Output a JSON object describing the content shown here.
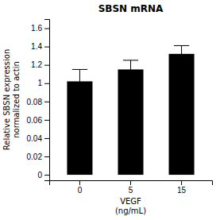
{
  "chart_data": {
    "type": "bar",
    "title": "SBSN mRNA",
    "categories": [
      "0",
      "5",
      "15"
    ],
    "values": [
      1.02,
      1.15,
      1.32
    ],
    "errors": [
      0.13,
      0.1,
      0.09
    ],
    "color": "#000000",
    "xlabel": "VEGF\n(ng/mL)",
    "ylabel": "Relative SBSN expression\nnormalized to actin",
    "ylim": [
      -0.006,
      1.7
    ],
    "yticks": [
      0,
      0.02,
      0.04,
      0.06,
      0.08,
      1,
      1.2,
      1.4,
      1.6
    ],
    "grid": false
  }
}
